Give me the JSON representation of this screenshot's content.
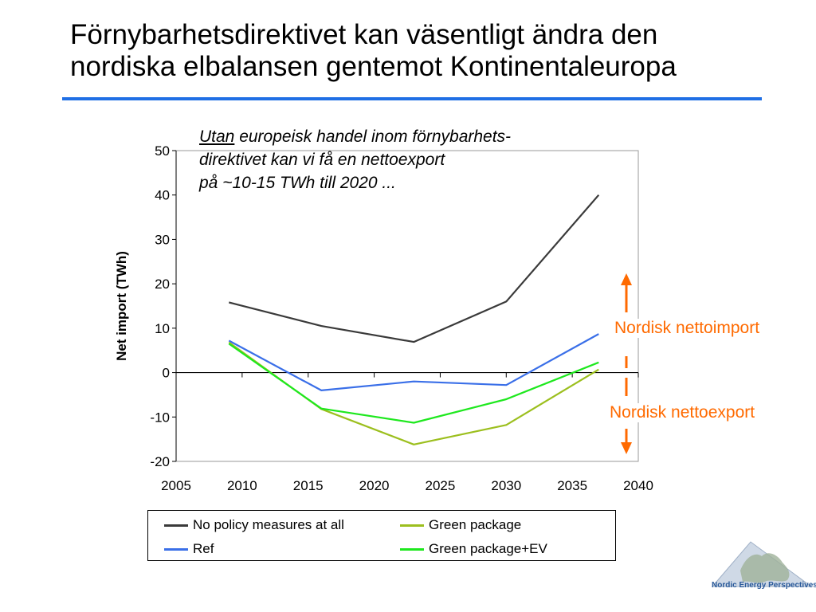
{
  "slide": {
    "title_line1": "Förnybarhetsdirektivet kan väsentligt ändra den",
    "title_line2": "nordiska elbalansen gentemot Kontinentaleuropa"
  },
  "annotation": {
    "underlined_word": "Utan",
    "line1_rest": " europeisk handel inom förnybarhets-",
    "line2": "direktivet kan vi få en nettoexport",
    "line3": "på ~10-15 TWh till 2020 ..."
  },
  "side_labels": {
    "import": "Nordisk nettoimport",
    "export": "Nordisk nettoexport"
  },
  "logo": {
    "text": "Nordic Energy Perspectives"
  },
  "colors": {
    "title_rule": "#1f6fe5",
    "arrow": "#ff6a00",
    "no_policy": "#3a3a3a",
    "ref": "#3a6fe8",
    "green_package": "#9cbf1e",
    "green_package_ev": "#1ee81e"
  },
  "chart_data": {
    "type": "line",
    "title": "",
    "xlabel": "",
    "ylabel": "Net import (TWh)",
    "xlim": [
      2005,
      2040
    ],
    "ylim": [
      -20,
      50
    ],
    "x_ticks": [
      "2005",
      "2010",
      "2015",
      "2020",
      "2025",
      "2030",
      "2035",
      "2040"
    ],
    "y_ticks": [
      "50",
      "40",
      "30",
      "20",
      "10",
      "0",
      "-10",
      "-20"
    ],
    "grid": false,
    "legend_position": "bottom",
    "x": [
      2009,
      2016,
      2023,
      2030,
      2037
    ],
    "series": [
      {
        "name": "No policy measures at all",
        "color": "#3a3a3a",
        "values": [
          15.8,
          10.5,
          6.9,
          16.0,
          40.0
        ]
      },
      {
        "name": "Ref",
        "color": "#3a6fe8",
        "values": [
          7.2,
          -4.0,
          -2.0,
          -2.8,
          8.7
        ]
      },
      {
        "name": "Green package",
        "color": "#9cbf1e",
        "values": [
          6.8,
          -8.2,
          -16.2,
          -11.8,
          0.7
        ]
      },
      {
        "name": "Green package+EV",
        "color": "#1ee81e",
        "values": [
          6.5,
          -8.1,
          -11.3,
          -6.0,
          2.3
        ]
      }
    ]
  }
}
